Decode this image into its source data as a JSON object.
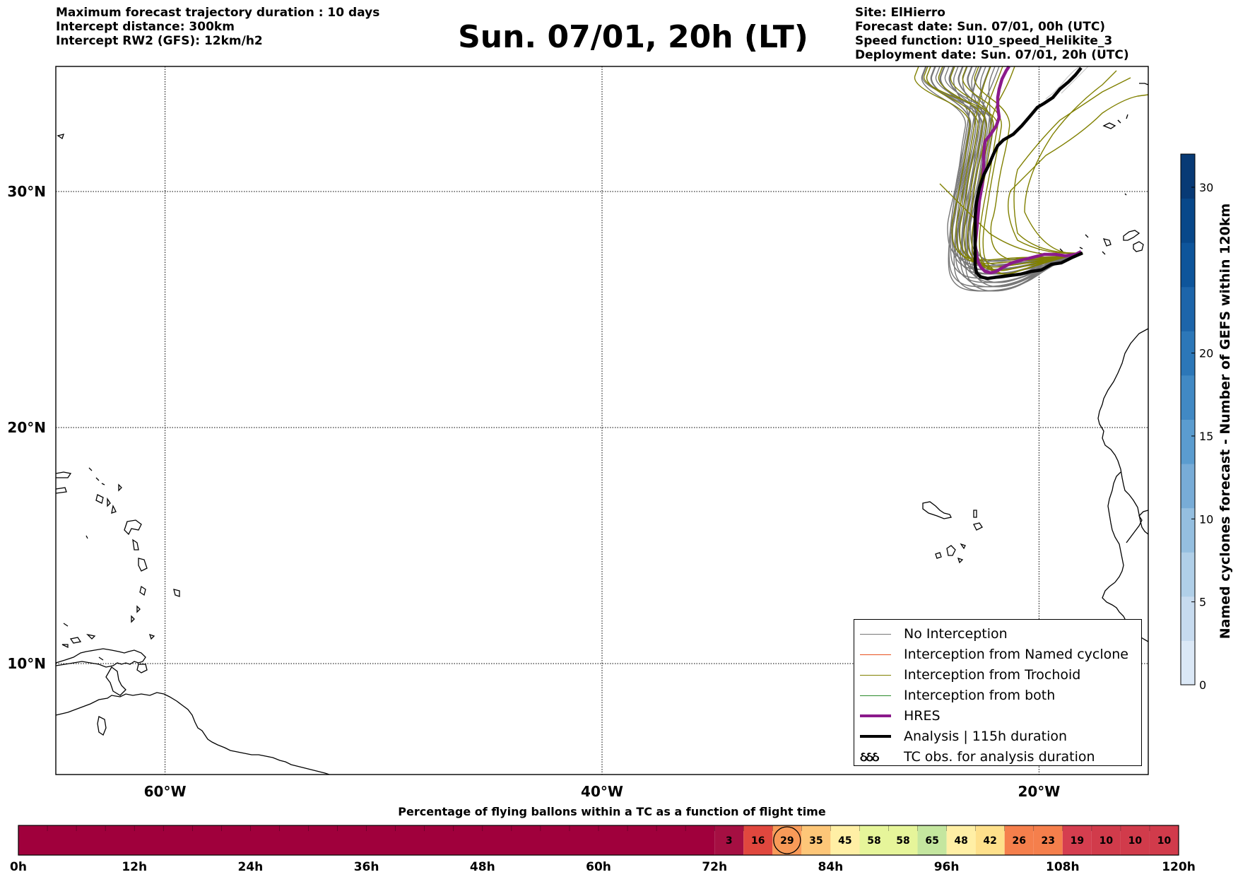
{
  "header_left": {
    "line1": "Maximum forecast trajectory duration : 10 days",
    "line2": "Intercept distance: 300km",
    "line3": "Intercept RW2 (GFS):  12km/h2"
  },
  "title": "Sun. 07/01, 20h (LT)",
  "header_right": {
    "line1": "Site: ElHierro",
    "line2": "Forecast date: Sun. 07/01, 00h (UTC)",
    "line3": "Speed function: U10_speed_Helikite_3",
    "line4": "Deployment date: Sun. 07/01, 20h (UTC)"
  },
  "map": {
    "lat_labels": [
      "30°N",
      "20°N",
      "10°N"
    ],
    "lon_labels": [
      "60°W",
      "40°W",
      "20°W"
    ],
    "lat_values": [
      30,
      20,
      10
    ],
    "lon_values": [
      -60,
      -40,
      -20
    ],
    "extent": {
      "lon_min": -65,
      "lon_max": -15,
      "lat_min": 5.3,
      "lat_max": 35.3
    },
    "colors": {
      "no_interception": "#777777",
      "trochoid": "#808000",
      "named": "#e8501e",
      "both": "#2a8a2a",
      "hres": "#8b1a8b",
      "analysis": "#000000"
    }
  },
  "legend": {
    "items": [
      {
        "label": "No Interception",
        "color": "#777777",
        "style": "thin"
      },
      {
        "label": "Interception from Named cyclone",
        "color": "#e8501e",
        "style": "thin"
      },
      {
        "label": "Interception from Trochoid",
        "color": "#808000",
        "style": "thin"
      },
      {
        "label": "Interception from both",
        "color": "#2a8a2a",
        "style": "thin"
      },
      {
        "label": "HRES",
        "color": "#8b1a8b",
        "style": "thick"
      },
      {
        "label": "Analysis | 115h duration",
        "color": "#000000",
        "style": "thick"
      },
      {
        "label": "TC obs. for analysis duration",
        "color": "#000000",
        "style": "symbol"
      }
    ],
    "tc_symbol": "ઠઠઠ"
  },
  "colorbar": {
    "title": "Named cyclones forecast - Number of GEFS within 120km",
    "ticks": [
      "0",
      "5",
      "10",
      "15",
      "20",
      "30"
    ],
    "tick_values": [
      0,
      5,
      10,
      15,
      20,
      30
    ],
    "min": 0,
    "max": 32
  },
  "bottom_bar": {
    "title": "Percentage of flying ballons within a TC as a function of flight time",
    "time_labels": [
      "0h",
      "12h",
      "24h",
      "36h",
      "48h",
      "60h",
      "72h",
      "84h",
      "96h",
      "108h",
      "120h"
    ],
    "cell_hours": 3,
    "total_hours": 120,
    "start_hour": 72,
    "values": [
      "3",
      "16",
      "29",
      "35",
      "45",
      "58",
      "58",
      "65",
      "48",
      "42",
      "26",
      "23",
      "19",
      "10",
      "10",
      "10"
    ],
    "highlighted_index": 2,
    "base_color": "#a0003c"
  }
}
